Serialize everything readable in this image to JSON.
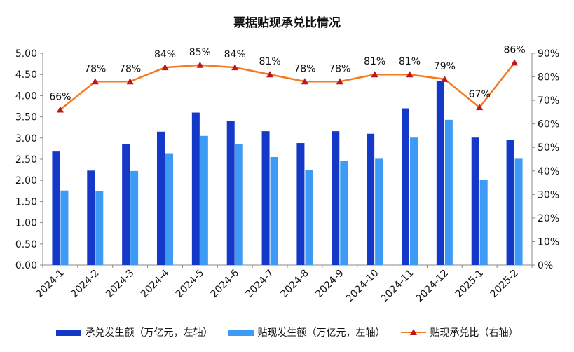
{
  "chart_data": {
    "type": "bar",
    "title": "票据贴现承兑比情况",
    "categories": [
      "2024-1",
      "2024-2",
      "2024-3",
      "2024-4",
      "2024-5",
      "2024-6",
      "2024-7",
      "2024-8",
      "2024-9",
      "2024-10",
      "2024-11",
      "2024-12",
      "2025-1",
      "2025-2"
    ],
    "series": [
      {
        "name": "承兑发生额（万亿元，左轴）",
        "axis": "left",
        "type": "bar",
        "color": "#1438c8",
        "values": [
          2.68,
          2.23,
          2.86,
          3.15,
          3.6,
          3.41,
          3.16,
          2.88,
          3.16,
          3.1,
          3.7,
          4.35,
          3.01,
          2.95
        ]
      },
      {
        "name": "贴现发生额（万亿元，左轴）",
        "axis": "left",
        "type": "bar",
        "color": "#3d9bf6",
        "values": [
          1.76,
          1.74,
          2.22,
          2.64,
          3.05,
          2.86,
          2.55,
          2.25,
          2.46,
          2.51,
          3.01,
          3.43,
          2.02,
          2.51
        ]
      },
      {
        "name": "贴现承兑比（右轴）",
        "axis": "right",
        "type": "line",
        "color": "#f47a1f",
        "marker_color": "#c0161b",
        "values": [
          66,
          78,
          78,
          84,
          85,
          84,
          81,
          78,
          78,
          81,
          81,
          79,
          67,
          86
        ],
        "labels": [
          "66%",
          "78%",
          "78%",
          "84%",
          "85%",
          "84%",
          "81%",
          "78%",
          "78%",
          "81%",
          "81%",
          "79%",
          "67%",
          "86%"
        ]
      }
    ],
    "y_left": {
      "min": 0,
      "max": 5,
      "ticks": [
        "0.00",
        "0.50",
        "1.00",
        "1.50",
        "2.00",
        "2.50",
        "3.00",
        "3.50",
        "4.00",
        "4.50",
        "5.00"
      ]
    },
    "y_right": {
      "min": 0,
      "max": 90,
      "ticks": [
        "0%",
        "10%",
        "20%",
        "30%",
        "40%",
        "50%",
        "60%",
        "70%",
        "80%",
        "90%"
      ]
    },
    "legend": [
      "承兑发生额（万亿元，左轴）",
      "贴现发生额（万亿元，左轴）",
      "贴现承兑比（右轴）"
    ],
    "legend_position": "bottom"
  }
}
